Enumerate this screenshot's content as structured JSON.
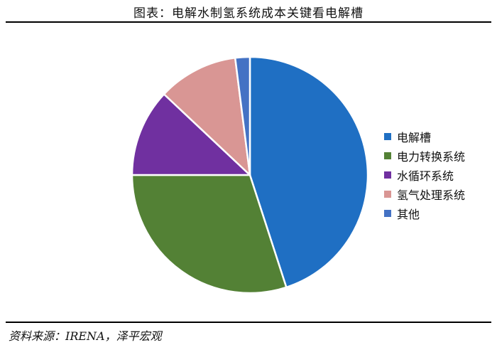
{
  "header": {
    "title": "图表：电解水制氢系统成本关键看电解槽"
  },
  "footer": {
    "source": "资料来源：IRENA，泽平宏观"
  },
  "chart_data": {
    "type": "pie",
    "title": "",
    "legend_position": "right",
    "start": "top",
    "direction": "clockwise",
    "slices": [
      {
        "label": "电解槽",
        "value": 45,
        "color": "#1f6fc3"
      },
      {
        "label": "电力转换系统",
        "value": 30,
        "color": "#538135"
      },
      {
        "label": "水循环系统",
        "value": 12,
        "color": "#7030a0"
      },
      {
        "label": "氢气处理系统",
        "value": 11,
        "color": "#d99694"
      },
      {
        "label": "其他",
        "value": 2,
        "color": "#4472c4"
      }
    ]
  }
}
